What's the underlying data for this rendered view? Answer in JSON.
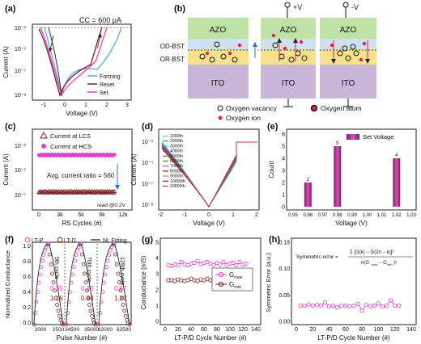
{
  "panels": {
    "a": {
      "label": "(a)",
      "annotation": "CC = 600 μA",
      "xlabel": "Voltage (V)",
      "ylabel": "Current (A)",
      "xticks": [
        "-1",
        "0",
        "1",
        "2",
        "3"
      ],
      "yticks": [
        "10⁻³",
        "10⁻⁵",
        "10⁻⁷",
        "10⁻⁹"
      ],
      "legend": [
        "Forming",
        "Reset",
        "Set"
      ],
      "colors": [
        "#5aaee8",
        "#7a1f1f",
        "#e040c8"
      ]
    },
    "b": {
      "label": "(b)",
      "top_label": "AZO",
      "bottom_label": "ITO",
      "layer1": "OD-BST",
      "layer2": "OR-BST",
      "plus_v": "+V",
      "minus_v": "-V",
      "legend_vacancy": "Oxygen vacancy",
      "legend_ion": "Oxygen ion",
      "legend_atom": "Oxygen atom"
    },
    "c": {
      "label": "(c)",
      "legend_lcs": "Current at LCS",
      "legend_hcs": "Current at HCS",
      "ratio_text": "Avg. current ratio = 560",
      "read_text": "read @0.2V",
      "xlabel": "RS Cycles (#)",
      "ylabel": "Current (A)",
      "xticks": [
        "0",
        "3k",
        "6k",
        "9k",
        "12k"
      ],
      "yticks": [
        "10⁻³",
        "10⁻⁵",
        "10⁻⁷"
      ]
    },
    "d": {
      "label": "(d)",
      "xlabel": "Voltage (V)",
      "ylabel": "Current (A)",
      "xticks": [
        "-2",
        "-1",
        "0",
        "1",
        "2"
      ],
      "yticks": [
        "10⁻³",
        "10⁻⁵",
        "10⁻⁷",
        "10⁻⁹"
      ],
      "legend": [
        "1000th",
        "2000th",
        "3000th",
        "4000th",
        "5000th",
        "6000th",
        "7000th",
        "8000th",
        "9000th",
        "10000th",
        "10800th"
      ]
    },
    "e": {
      "label": "(e)",
      "legend": "Set Voltage",
      "xlabel": "Voltage (V)",
      "ylabel": "Count",
      "xticks": [
        "0.95",
        "0.96",
        "0.97",
        "0.98",
        "0.99",
        "1.00",
        "1.01",
        "1.02",
        "1.03"
      ],
      "yticks": [
        "0",
        "1",
        "2",
        "3",
        "4",
        "5",
        "6"
      ]
    },
    "f": {
      "label": "(f)",
      "legend": [
        "LT-P",
        "LT-D",
        "NL Fitting"
      ],
      "cycle_labels": [
        "5th cycle",
        "70th cycle",
        "125th cycle"
      ],
      "nl_values": [
        [
          "0.35",
          "1.16"
        ],
        [
          "0.33",
          "0.94"
        ],
        [
          "0.57",
          "1.32"
        ]
      ],
      "xlabel": "Pulse Number (#)",
      "ylabel": "Normalized Conductance",
      "xticks": [
        "2000",
        "2500",
        "34500",
        "35000",
        "62000",
        "62500"
      ],
      "yticks": [
        "0.0",
        "0.2",
        "0.4",
        "0.6",
        "0.8",
        "1.0"
      ]
    },
    "g": {
      "label": "(g)",
      "legend": [
        "G",
        "G"
      ],
      "legend_sub": [
        "max",
        "min"
      ],
      "xlabel": "LT-P/D Cycle Number (#)",
      "ylabel": "Conductance (mS)",
      "xticks": [
        "0",
        "20",
        "40",
        "60",
        "80",
        "100",
        "120",
        "140"
      ],
      "yticks": [
        "0",
        "1",
        "2",
        "3",
        "4",
        "5"
      ]
    },
    "h": {
      "label": "(h)",
      "formula_label": "Symmetric error =",
      "xlabel": "LT-P/D Cycle Number (#)",
      "ylabel": "Symmetric Error (a.u.)",
      "xticks": [
        "0",
        "20",
        "40",
        "60",
        "80",
        "100",
        "120",
        "140"
      ],
      "yticks": [
        "0.00",
        "0.05",
        "0.10",
        "0.15"
      ]
    }
  },
  "chart_data": [
    {
      "panel": "c",
      "type": "scatter",
      "series": [
        {
          "name": "Current at HCS",
          "x": [
            0,
            12000
          ],
          "y": [
            0.0005,
            0.0005
          ],
          "color": "#e040c8"
        },
        {
          "name": "Current at LCS",
          "x": [
            0,
            12000
          ],
          "y": [
            9e-07,
            9e-07
          ],
          "color": "#7a1f1f"
        }
      ],
      "xlim": [
        -1000,
        13000
      ],
      "xlabel": "RS Cycles (#)",
      "ylabel": "Current (A)"
    },
    {
      "panel": "e",
      "type": "bar",
      "categories": [
        "0.96",
        "0.98",
        "1.02"
      ],
      "values": [
        2,
        5,
        4
      ],
      "xlim": [
        0.95,
        1.03
      ],
      "ylim": [
        0,
        6
      ],
      "xlabel": "Voltage (V)",
      "ylabel": "Count",
      "legend": "Set Voltage"
    },
    {
      "panel": "g",
      "type": "line",
      "x": [
        5,
        10,
        15,
        20,
        25,
        30,
        35,
        40,
        45,
        50,
        55,
        60,
        65,
        70,
        75,
        80,
        85,
        90,
        95,
        100,
        105,
        110,
        115,
        120,
        125
      ],
      "series": [
        {
          "values": [
            3.55,
            3.5,
            3.6,
            3.55,
            3.75,
            3.6,
            3.55,
            3.65,
            3.7,
            3.8,
            3.6,
            3.7,
            3.75,
            3.65,
            3.55,
            3.7,
            3.6,
            3.75,
            3.55,
            3.65,
            3.7,
            3.55,
            3.75,
            3.6,
            3.65
          ],
          "color": "#e040c8"
        },
        {
          "values": [
            2.6,
            2.6,
            2.55,
            2.65,
            2.6,
            2.55,
            2.6,
            2.7,
            2.6,
            2.55,
            2.65,
            2.6,
            2.7,
            2.6,
            2.55,
            2.65,
            2.6,
            2.65,
            2.6,
            2.55,
            2.7,
            2.6,
            2.65,
            2.6,
            2.55
          ],
          "color": "#7a1f1f"
        }
      ],
      "xlim": [
        0,
        140
      ],
      "ylim": [
        0,
        5
      ],
      "xlabel": "LT-P/D Cycle Number (#)",
      "ylabel": "Conductance (mS)"
    },
    {
      "panel": "h",
      "type": "line",
      "x": [
        5,
        10,
        15,
        20,
        25,
        30,
        35,
        40,
        45,
        50,
        55,
        60,
        65,
        70,
        75,
        80,
        85,
        90,
        95,
        100,
        105,
        110,
        115,
        120,
        125
      ],
      "series": [
        {
          "values": [
            0.03,
            0.03,
            0.032,
            0.03,
            0.031,
            0.03,
            0.036,
            0.028,
            0.03,
            0.027,
            0.03,
            0.03,
            0.029,
            0.03,
            0.033,
            0.02,
            0.031,
            0.029,
            0.03,
            0.034,
            0.028,
            0.03,
            0.04,
            0.03,
            0.03
          ],
          "color": "#e040c8"
        }
      ],
      "xlim": [
        0,
        140
      ],
      "ylim": [
        0,
        0.15
      ],
      "xlabel": "LT-P/D Cycle Number (#)",
      "ylabel": "Symmetric Error (a.u.)"
    }
  ]
}
